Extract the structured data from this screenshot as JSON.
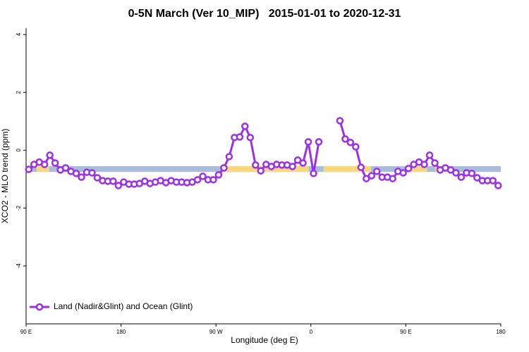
{
  "chart_data": {
    "type": "line",
    "title": "0-5N March (Ver 10_MIP)   2015-01-01 to 2020-12-31",
    "xlabel": "Longitude (deg E)",
    "ylabel": "XCO2 - MLO trend (ppm)",
    "xlim": [
      90,
      540
    ],
    "ylim": [
      -6.0,
      4.22
    ],
    "xticks": [
      {
        "value": 90,
        "label": "90 E"
      },
      {
        "value": 180,
        "label": "180"
      },
      {
        "value": 270,
        "label": "90 W"
      },
      {
        "value": 360,
        "label": "0"
      },
      {
        "value": 450,
        "label": "90 E"
      },
      {
        "value": 540,
        "label": "180"
      }
    ],
    "yticks": [
      4,
      2,
      0,
      -2,
      -4
    ],
    "legend_position": "bottom-left",
    "band": {
      "ylim": [
        -0.75,
        -0.55
      ],
      "segments": [
        {
          "xlim": [
            90,
            540
          ],
          "color": "#a9bcd9"
        },
        {
          "xlim": [
            100,
            112
          ],
          "color": "#f8d77f"
        },
        {
          "xlim": [
            277,
            358
          ],
          "color": "#f8d77f"
        },
        {
          "xlim": [
            372,
            417
          ],
          "color": "#f8d77f"
        },
        {
          "xlim": [
            455,
            470
          ],
          "color": "#f8d77f"
        },
        {
          "xlim": [
            478,
            493
          ],
          "color": "#f8d77f"
        }
      ]
    },
    "x": [
      92.5,
      97.5,
      102.5,
      107.5,
      112.5,
      117.5,
      122.5,
      127.5,
      132.5,
      137.5,
      142.5,
      147.5,
      152.5,
      157.5,
      162.5,
      167.5,
      172.5,
      177.5,
      182.5,
      187.5,
      192.5,
      197.5,
      202.5,
      207.5,
      212.5,
      217.5,
      222.5,
      227.5,
      232.5,
      237.5,
      242.5,
      247.5,
      252.5,
      257.5,
      262.5,
      267.5,
      272.5,
      277.5,
      282.5,
      287.5,
      292.5,
      297.5,
      302.5,
      307.5,
      312.5,
      317.5,
      322.5,
      327.5,
      332.5,
      337.5,
      342.5,
      347.5,
      352.5,
      357.5,
      362.5,
      367.5,
      372.5,
      377.5,
      382.5,
      387.5,
      392.5,
      397.5,
      402.5,
      407.5,
      412.5,
      417.5,
      422.5,
      427.5,
      432.5,
      437.5,
      442.5,
      447.5,
      452.5,
      457.5,
      462.5,
      467.5,
      472.5,
      477.5,
      482.5,
      487.5,
      492.5,
      497.5,
      502.5,
      507.5,
      512.5,
      517.5,
      522.5,
      527.5,
      532.5,
      537.5
    ],
    "series": [
      {
        "name": "Land (Nadir&Glint) and Ocean (Glint)",
        "color": "#9b30e8",
        "values": [
          -0.66,
          -0.49,
          -0.41,
          -0.49,
          -0.17,
          -0.44,
          -0.68,
          -0.61,
          -0.73,
          -0.8,
          -0.93,
          -0.76,
          -0.78,
          -0.95,
          -1.05,
          -1.07,
          -1.07,
          -1.22,
          -1.1,
          -1.17,
          -1.17,
          -1.15,
          -1.07,
          -1.15,
          -1.1,
          -1.05,
          -1.12,
          -1.05,
          -1.1,
          -1.1,
          -1.12,
          -1.1,
          -1.02,
          -0.9,
          -1.02,
          -1.02,
          -0.85,
          -0.61,
          -0.22,
          0.44,
          0.46,
          0.83,
          0.44,
          -0.51,
          -0.71,
          -0.49,
          -0.56,
          -0.49,
          -0.51,
          -0.51,
          -0.56,
          -0.34,
          -0.44,
          0.29,
          -0.8,
          0.29,
          null,
          null,
          null,
          1.02,
          0.39,
          0.27,
          0.12,
          -0.59,
          -0.98,
          -0.88,
          -0.73,
          -0.93,
          -0.93,
          -0.98,
          -0.73,
          -0.78,
          -0.63,
          -0.49,
          -0.41,
          -0.49,
          -0.17,
          -0.44,
          -0.68,
          -0.61,
          -0.68,
          -0.78,
          -0.93,
          -0.78,
          -0.8,
          -0.95,
          -1.05,
          -1.05,
          -1.05,
          -1.22
        ]
      }
    ]
  }
}
